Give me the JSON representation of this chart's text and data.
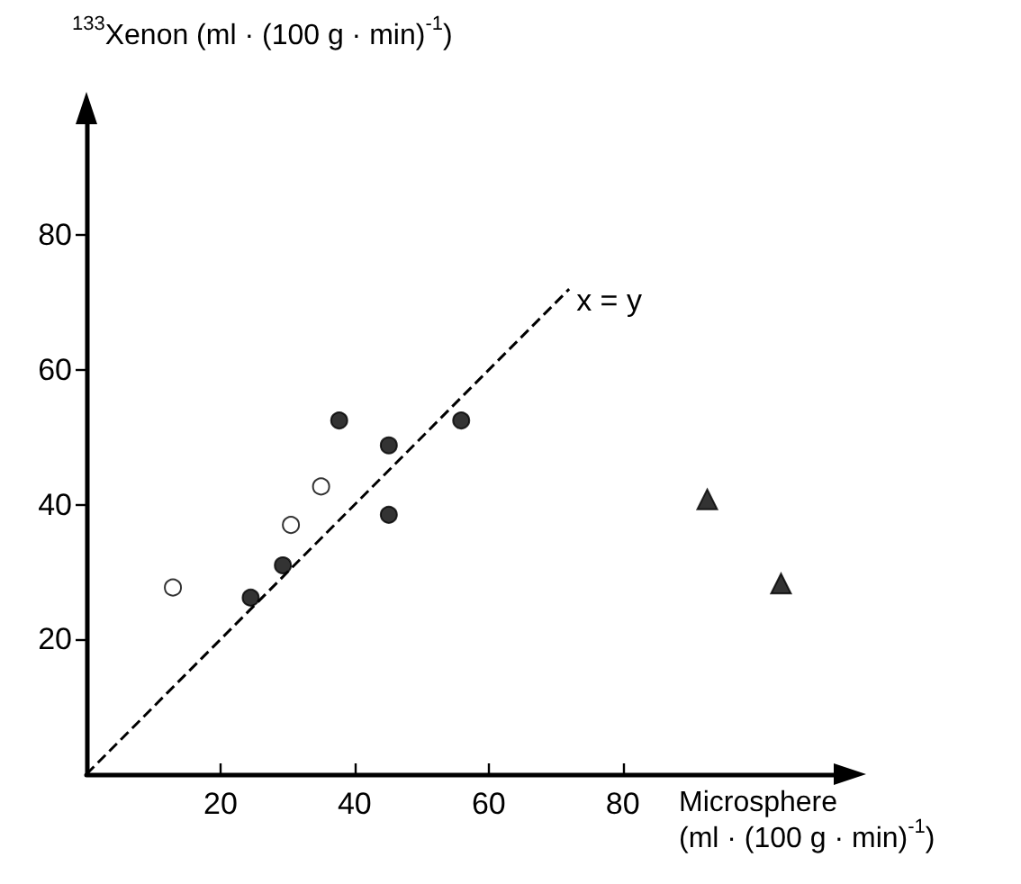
{
  "chart_data": {
    "type": "scatter",
    "xlabel": "Microsphere (ml · (100 g · min)$^{-1}$)",
    "ylabel": "$^{133}$Xenon (ml · (100 g · min)$^{-1}$)",
    "xlim": [
      0,
      112
    ],
    "ylim": [
      0,
      97
    ],
    "xticks": [
      20,
      40,
      60,
      80
    ],
    "yticks": [
      20,
      40,
      60,
      80
    ],
    "grid": false,
    "annotations": [
      {
        "text": "x = y",
        "x": 72,
        "y": 72
      }
    ],
    "series": [
      {
        "marker": "circle",
        "color": "#ffffff",
        "x": [
          12.9,
          30.5,
          35
        ],
        "values": [
          27.7,
          37,
          42.7
        ]
      },
      {
        "marker": "circle",
        "color": "#000000",
        "x": [
          24.5,
          29.3,
          37.7,
          45.1,
          45.1,
          55.9
        ],
        "values": [
          26.2,
          31,
          52.5,
          48.8,
          38.5,
          52.5
        ]
      },
      {
        "marker": "triangle",
        "color": "#000000",
        "x": [
          92.6,
          103.6
        ],
        "values": [
          40.8,
          28.3
        ]
      },
      {
        "type": "line",
        "marker": "none",
        "line_style": "dashed",
        "color": "#000000",
        "x": [
          0,
          72
        ],
        "values": [
          0,
          72
        ]
      }
    ]
  }
}
